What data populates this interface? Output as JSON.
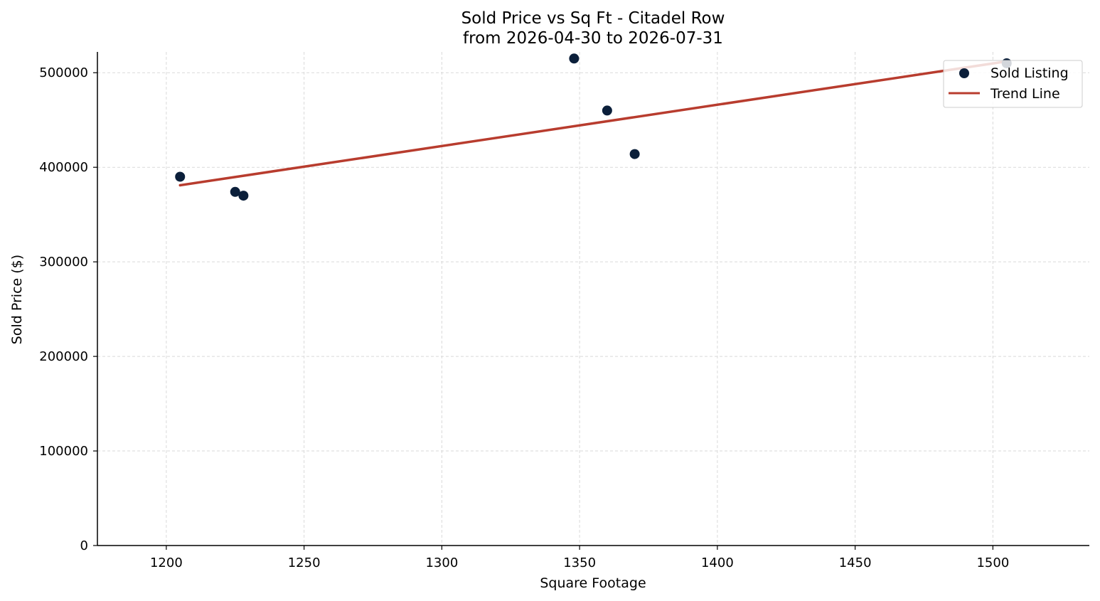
{
  "chart_data": {
    "type": "scatter",
    "title": "Sold Price vs Sq Ft - Citadel Row",
    "subtitle": "from 2026-04-30 to 2026-07-31",
    "xlabel": "Square Footage",
    "ylabel": "Sold Price ($)",
    "xlim": [
      1175,
      1535
    ],
    "ylim": [
      0,
      522000
    ],
    "x_ticks": [
      1200,
      1250,
      1300,
      1350,
      1400,
      1450,
      1500
    ],
    "y_ticks": [
      0,
      100000,
      200000,
      300000,
      400000,
      500000
    ],
    "grid": true,
    "legend_position": "top-right",
    "series": [
      {
        "name": "Sold Listing",
        "kind": "scatter",
        "color": "#0b1f3a",
        "x": [
          1205,
          1225,
          1228,
          1348,
          1360,
          1370,
          1505
        ],
        "y": [
          390000,
          374000,
          370000,
          515000,
          460000,
          414000,
          510000
        ]
      },
      {
        "name": "Trend Line",
        "kind": "line",
        "color": "#b83c2e",
        "x": [
          1205,
          1505
        ],
        "y": [
          381000,
          512000
        ]
      }
    ]
  }
}
